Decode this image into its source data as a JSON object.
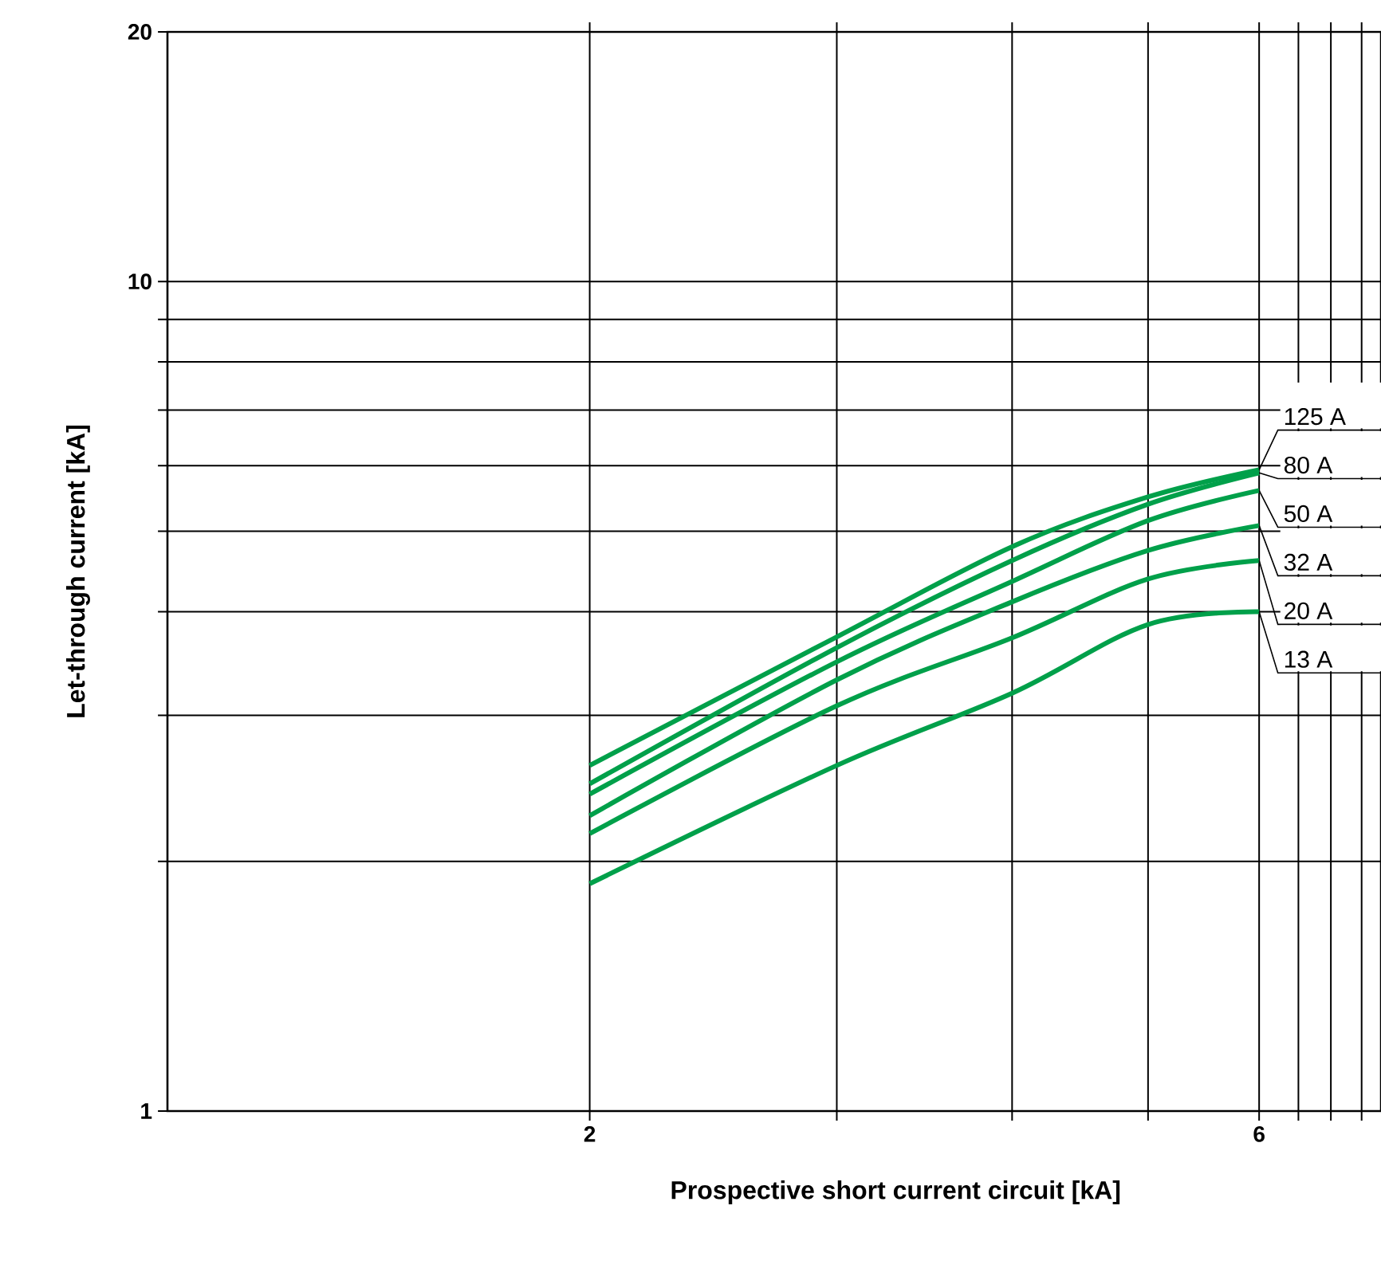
{
  "chart_data": {
    "type": "line",
    "xlabel": "Prospective short current circuit [kA]",
    "ylabel": "Let-through current [kA]",
    "log": "xy",
    "grid": true,
    "xlim": [
      1,
      7.33
    ],
    "ylim": [
      1,
      20
    ],
    "xticks": [
      2,
      {
        "value": 3,
        "label": null
      },
      {
        "value": 4,
        "label": null
      },
      {
        "value": 5,
        "label": null
      },
      6,
      {
        "value": 6.4,
        "label": null
      },
      {
        "value": 6.75,
        "label": null
      },
      {
        "value": 7.1,
        "label": null
      }
    ],
    "yticks": [
      1,
      {
        "value": 2,
        "label": null
      },
      {
        "value": 3,
        "label": null
      },
      {
        "value": 4,
        "label": null
      },
      {
        "value": 5,
        "label": null
      },
      {
        "value": 6,
        "label": null
      },
      {
        "value": 7,
        "label": null
      },
      {
        "value": 8,
        "label": null
      },
      {
        "value": 9,
        "label": null
      },
      10,
      20
    ],
    "x": [
      2,
      3,
      4,
      5,
      6
    ],
    "series": [
      {
        "name": "125 A",
        "color": "#00a04a",
        "values": [
          2.61,
          3.73,
          4.79,
          5.5,
          5.93
        ]
      },
      {
        "name": "80 A",
        "color": "#00a04a",
        "values": [
          2.48,
          3.62,
          4.61,
          5.39,
          5.88
        ]
      },
      {
        "name": "50 A",
        "color": "#00a04a",
        "values": [
          2.41,
          3.48,
          4.35,
          5.15,
          5.6
        ]
      },
      {
        "name": "32 A",
        "color": "#00a04a",
        "values": [
          2.27,
          3.31,
          4.11,
          4.74,
          5.08
        ]
      },
      {
        "name": "20 A",
        "color": "#00a04a",
        "values": [
          2.16,
          3.08,
          3.72,
          4.38,
          4.61
        ]
      },
      {
        "name": "13 A",
        "color": "#00a04a",
        "values": [
          1.88,
          2.61,
          3.19,
          3.86,
          4.0
        ]
      }
    ]
  }
}
